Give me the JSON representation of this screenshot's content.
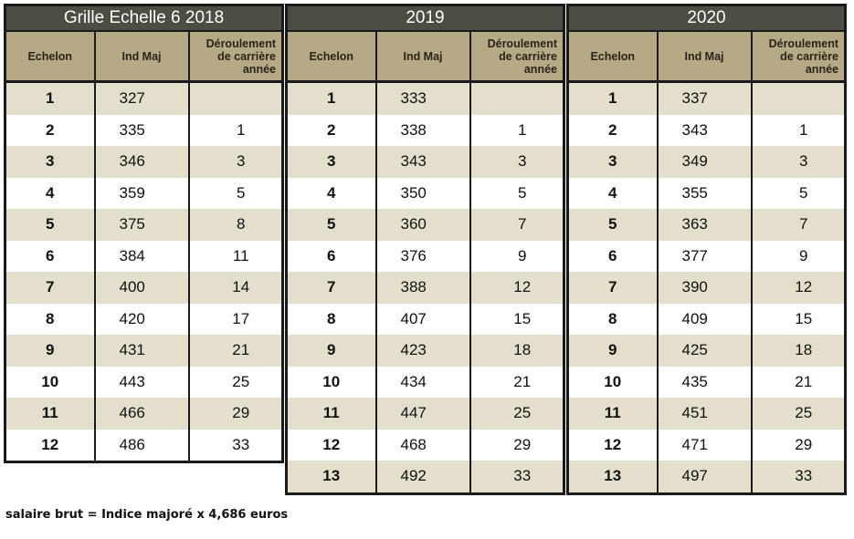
{
  "tables": [
    {
      "title": "Grille Echelle 6  2018",
      "headers": {
        "echelon": "Echelon",
        "ind_maj": "Ind Maj",
        "deroulement": [
          "Déroulement",
          "de carrière",
          "année"
        ]
      },
      "rows": [
        {
          "echelon": "1",
          "ind_maj": "327",
          "deroulement": ""
        },
        {
          "echelon": "2",
          "ind_maj": "335",
          "deroulement": "1"
        },
        {
          "echelon": "3",
          "ind_maj": "346",
          "deroulement": "3"
        },
        {
          "echelon": "4",
          "ind_maj": "359",
          "deroulement": "5"
        },
        {
          "echelon": "5",
          "ind_maj": "375",
          "deroulement": "8"
        },
        {
          "echelon": "6",
          "ind_maj": "384",
          "deroulement": "11"
        },
        {
          "echelon": "7",
          "ind_maj": "400",
          "deroulement": "14"
        },
        {
          "echelon": "8",
          "ind_maj": "420",
          "deroulement": "17"
        },
        {
          "echelon": "9",
          "ind_maj": "431",
          "deroulement": "21"
        },
        {
          "echelon": "10",
          "ind_maj": "443",
          "deroulement": "25"
        },
        {
          "echelon": "11",
          "ind_maj": "466",
          "deroulement": "29"
        },
        {
          "echelon": "12",
          "ind_maj": "486",
          "deroulement": "33"
        }
      ]
    },
    {
      "title": "2019",
      "headers": {
        "echelon": "Echelon",
        "ind_maj": "Ind Maj",
        "deroulement": [
          "Déroulement",
          "de carrière",
          "année"
        ]
      },
      "rows": [
        {
          "echelon": "1",
          "ind_maj": "333",
          "deroulement": ""
        },
        {
          "echelon": "2",
          "ind_maj": "338",
          "deroulement": "1"
        },
        {
          "echelon": "3",
          "ind_maj": "343",
          "deroulement": "3"
        },
        {
          "echelon": "4",
          "ind_maj": "350",
          "deroulement": "5"
        },
        {
          "echelon": "5",
          "ind_maj": "360",
          "deroulement": "7"
        },
        {
          "echelon": "6",
          "ind_maj": "376",
          "deroulement": "9"
        },
        {
          "echelon": "7",
          "ind_maj": "388",
          "deroulement": "12"
        },
        {
          "echelon": "8",
          "ind_maj": "407",
          "deroulement": "15"
        },
        {
          "echelon": "9",
          "ind_maj": "423",
          "deroulement": "18"
        },
        {
          "echelon": "10",
          "ind_maj": "434",
          "deroulement": "21"
        },
        {
          "echelon": "11",
          "ind_maj": "447",
          "deroulement": "25"
        },
        {
          "echelon": "12",
          "ind_maj": "468",
          "deroulement": "29"
        },
        {
          "echelon": "13",
          "ind_maj": "492",
          "deroulement": "33"
        }
      ]
    },
    {
      "title": "2020",
      "headers": {
        "echelon": "Echelon",
        "ind_maj": "Ind Maj",
        "deroulement": [
          "Déroulement",
          "de carrière",
          "année"
        ]
      },
      "rows": [
        {
          "echelon": "1",
          "ind_maj": "337",
          "deroulement": ""
        },
        {
          "echelon": "2",
          "ind_maj": "343",
          "deroulement": "1"
        },
        {
          "echelon": "3",
          "ind_maj": "349",
          "deroulement": "3"
        },
        {
          "echelon": "4",
          "ind_maj": "355",
          "deroulement": "5"
        },
        {
          "echelon": "5",
          "ind_maj": "363",
          "deroulement": "7"
        },
        {
          "echelon": "6",
          "ind_maj": "377",
          "deroulement": "9"
        },
        {
          "echelon": "7",
          "ind_maj": "390",
          "deroulement": "12"
        },
        {
          "echelon": "8",
          "ind_maj": "409",
          "deroulement": "15"
        },
        {
          "echelon": "9",
          "ind_maj": "425",
          "deroulement": "18"
        },
        {
          "echelon": "10",
          "ind_maj": "435",
          "deroulement": "21"
        },
        {
          "echelon": "11",
          "ind_maj": "451",
          "deroulement": "25"
        },
        {
          "echelon": "12",
          "ind_maj": "471",
          "deroulement": "29"
        },
        {
          "echelon": "13",
          "ind_maj": "497",
          "deroulement": "33"
        }
      ]
    }
  ],
  "note": "salaire brut = Indice majoré x 4,686 euros"
}
